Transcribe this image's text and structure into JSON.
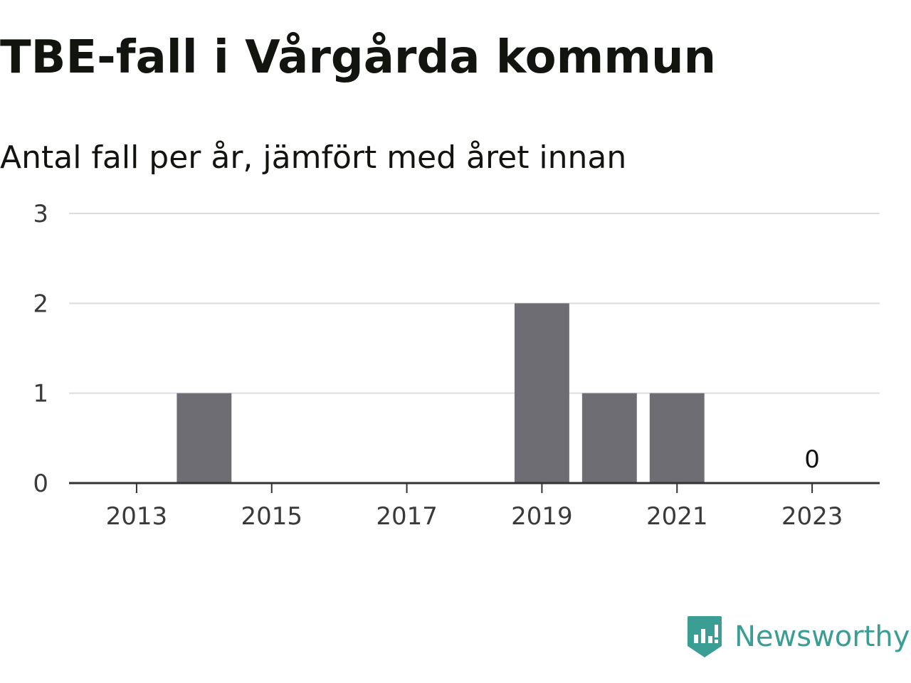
{
  "title": "TBE-fall i Vårgårda kommun",
  "subtitle": "Antal fall per år, jämfört med året innan",
  "brand": {
    "name": "Newsworthy",
    "icon": "newsworthy-logo-icon",
    "color": "#3a9e94"
  },
  "chart_data": {
    "type": "bar",
    "title": "TBE-fall i Vårgårda kommun",
    "subtitle": "Antal fall per år, jämfört med året innan",
    "xlabel": "",
    "ylabel": "",
    "x": [
      2013,
      2014,
      2015,
      2016,
      2017,
      2018,
      2019,
      2020,
      2021,
      2022,
      2023
    ],
    "values": [
      0,
      1,
      0,
      0,
      0,
      0,
      2,
      1,
      1,
      0,
      0
    ],
    "x_ticks": [
      "2013",
      "2015",
      "2017",
      "2019",
      "2021",
      "2023"
    ],
    "y_ticks": [
      "0",
      "1",
      "2",
      "3"
    ],
    "ylim": [
      0,
      3
    ],
    "xlim": [
      2012,
      2024
    ],
    "grid": true,
    "legend": "none",
    "annotations": [
      {
        "x": 2023,
        "text": "0"
      }
    ],
    "colors": {
      "bar": "#6e6d73",
      "grid": "#dddddd",
      "axis": "#333333"
    }
  }
}
